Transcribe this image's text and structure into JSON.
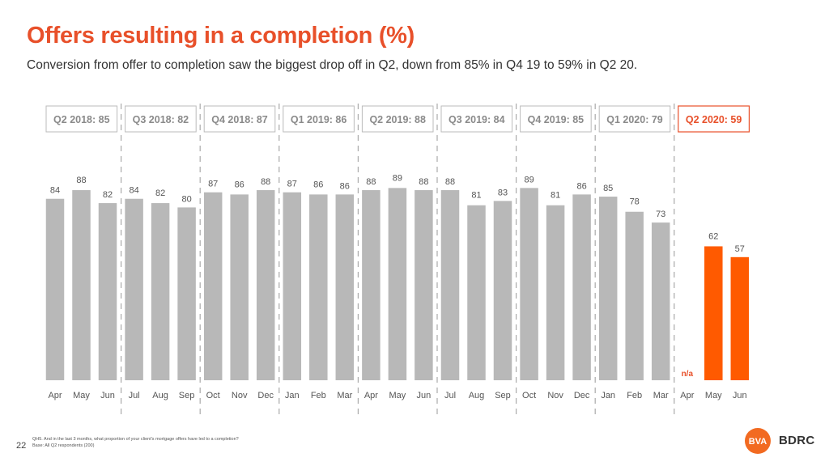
{
  "header": {
    "title": "Offers resulting in a completion (%)",
    "subtitle": "Conversion from offer to completion saw the biggest drop off in Q2, down from 85% in Q4 19 to 59% in Q2 20."
  },
  "colors": {
    "accent": "#E8502A",
    "bar_default": "#B8B8B8",
    "bar_highlight": "#FF5A00",
    "box_border": "#BBBBBB",
    "divider": "#AAAAAA"
  },
  "chart_data": {
    "type": "bar",
    "title": "Offers resulting in a completion (%)",
    "ylim": [
      0,
      100
    ],
    "grid": false,
    "legend": "none",
    "quarters": [
      {
        "label": "Q2 2018: 85",
        "months": [
          "Apr",
          "May",
          "Jun"
        ],
        "values": [
          84,
          88,
          82
        ],
        "highlight": false
      },
      {
        "label": "Q3 2018: 82",
        "months": [
          "Jul",
          "Aug",
          "Sep"
        ],
        "values": [
          84,
          82,
          80
        ],
        "highlight": false
      },
      {
        "label": "Q4 2018: 87",
        "months": [
          "Oct",
          "Nov",
          "Dec"
        ],
        "values": [
          87,
          86,
          88
        ],
        "highlight": false
      },
      {
        "label": "Q1 2019: 86",
        "months": [
          "Jan",
          "Feb",
          "Mar"
        ],
        "values": [
          87,
          86,
          86
        ],
        "highlight": false
      },
      {
        "label": "Q2 2019: 88",
        "months": [
          "Apr",
          "May",
          "Jun"
        ],
        "values": [
          88,
          89,
          88
        ],
        "highlight": false
      },
      {
        "label": "Q3 2019: 84",
        "months": [
          "Jul",
          "Aug",
          "Sep"
        ],
        "values": [
          88,
          81,
          83
        ],
        "highlight": false
      },
      {
        "label": "Q4 2019: 85",
        "months": [
          "Oct",
          "Nov",
          "Dec"
        ],
        "values": [
          89,
          81,
          86
        ],
        "highlight": false
      },
      {
        "label": "Q1 2020: 79",
        "months": [
          "Jan",
          "Feb",
          "Mar"
        ],
        "values": [
          85,
          78,
          73
        ],
        "highlight": false
      },
      {
        "label": "Q2 2020: 59",
        "months": [
          "Apr",
          "May",
          "Jun"
        ],
        "values": [
          null,
          62,
          57
        ],
        "highlight": true
      }
    ],
    "missing_label": "n/a"
  },
  "footer": {
    "question": "QH5. And in the last 3 months, what proportion of your client's mortgage offers have led to a completion?",
    "base": "Base: All Q2 respondents (200)",
    "page_number": "22",
    "logo_text": "BDRC",
    "logo_mark": "BVA"
  }
}
